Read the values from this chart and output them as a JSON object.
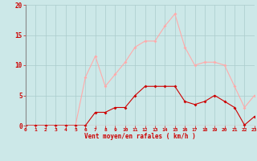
{
  "x": [
    0,
    1,
    2,
    3,
    4,
    5,
    6,
    7,
    8,
    9,
    10,
    11,
    12,
    13,
    14,
    15,
    16,
    17,
    18,
    19,
    20,
    21,
    22,
    23
  ],
  "wind_avg": [
    0,
    0,
    0,
    0,
    0,
    0,
    0,
    2.2,
    2.2,
    3.0,
    3.0,
    5.0,
    6.5,
    6.5,
    6.5,
    6.5,
    4.0,
    3.5,
    4.0,
    5.0,
    4.0,
    3.0,
    0.1,
    1.5
  ],
  "wind_gust": [
    0,
    0,
    0,
    0,
    0,
    0,
    8.0,
    11.5,
    6.5,
    8.5,
    10.5,
    13.0,
    14.0,
    14.0,
    16.5,
    18.5,
    13.0,
    10.0,
    10.5,
    10.5,
    10.0,
    6.5,
    3.0,
    5.0
  ],
  "avg_color": "#cc0000",
  "gust_color": "#ffaaaa",
  "bg_color": "#cce8e8",
  "grid_color": "#aacccc",
  "xlabel": "Vent moyen/en rafales ( km/h )",
  "ylim": [
    0,
    20
  ],
  "xlim": [
    0,
    23
  ],
  "yticks": [
    0,
    5,
    10,
    15,
    20
  ],
  "xticks": [
    0,
    1,
    2,
    3,
    4,
    5,
    6,
    7,
    8,
    9,
    10,
    11,
    12,
    13,
    14,
    15,
    16,
    17,
    18,
    19,
    20,
    21,
    22,
    23
  ]
}
